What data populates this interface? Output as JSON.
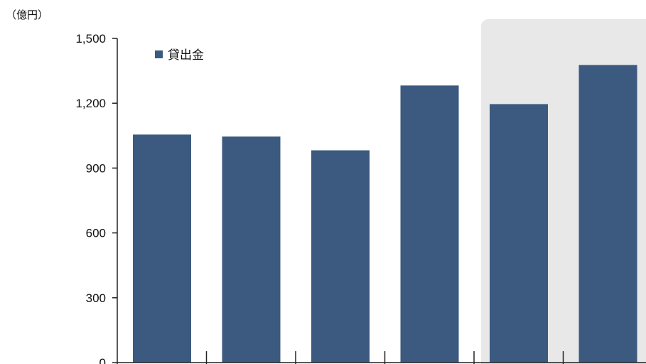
{
  "chart_data": {
    "type": "bar",
    "unit_label": "（億円）",
    "categories": [
      "",
      "",
      "",
      "",
      "",
      ""
    ],
    "series": [
      {
        "name": "貸出金",
        "values": [
          1055,
          1046,
          982,
          1282,
          1196,
          1377
        ]
      }
    ],
    "highlighted_categories": [
      4,
      5
    ],
    "ylim": [
      0,
      1500
    ],
    "yticks": [
      0,
      300,
      600,
      900,
      1200,
      1500
    ],
    "ytick_labels": [
      "0",
      "300",
      "600",
      "900",
      "1,200",
      "1,500"
    ],
    "legend_position": "top-left",
    "grid": false,
    "colors": {
      "bar": "#3c5a80",
      "highlight_panel": "#e8e8e8",
      "axis": "#222222"
    }
  }
}
